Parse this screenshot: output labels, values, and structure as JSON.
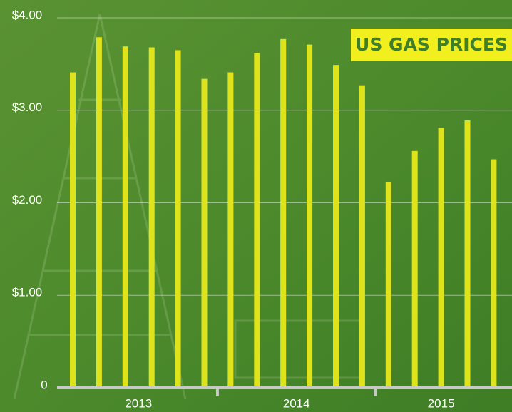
{
  "chart_data": {
    "type": "bar",
    "title": "US GAS PRICES",
    "categories": [
      "2013",
      null,
      null,
      null,
      null,
      null,
      "2014",
      null,
      null,
      null,
      null,
      null,
      "2015",
      null,
      null,
      null,
      null
    ],
    "values": [
      3.41,
      3.79,
      3.69,
      3.68,
      3.65,
      3.34,
      3.41,
      3.62,
      3.77,
      3.71,
      3.49,
      3.27,
      2.22,
      2.56,
      2.81,
      2.89,
      2.47
    ],
    "color": "#dfe31c",
    "ylim": [
      0,
      4.15
    ],
    "yticks": [
      0,
      {
        "value": 1,
        "label": "$1.00"
      },
      {
        "value": 2,
        "label": "$2.00"
      },
      {
        "value": 3,
        "label": "$3.00"
      },
      {
        "value": 4,
        "label": "$4.00"
      }
    ],
    "grid": true
  }
}
